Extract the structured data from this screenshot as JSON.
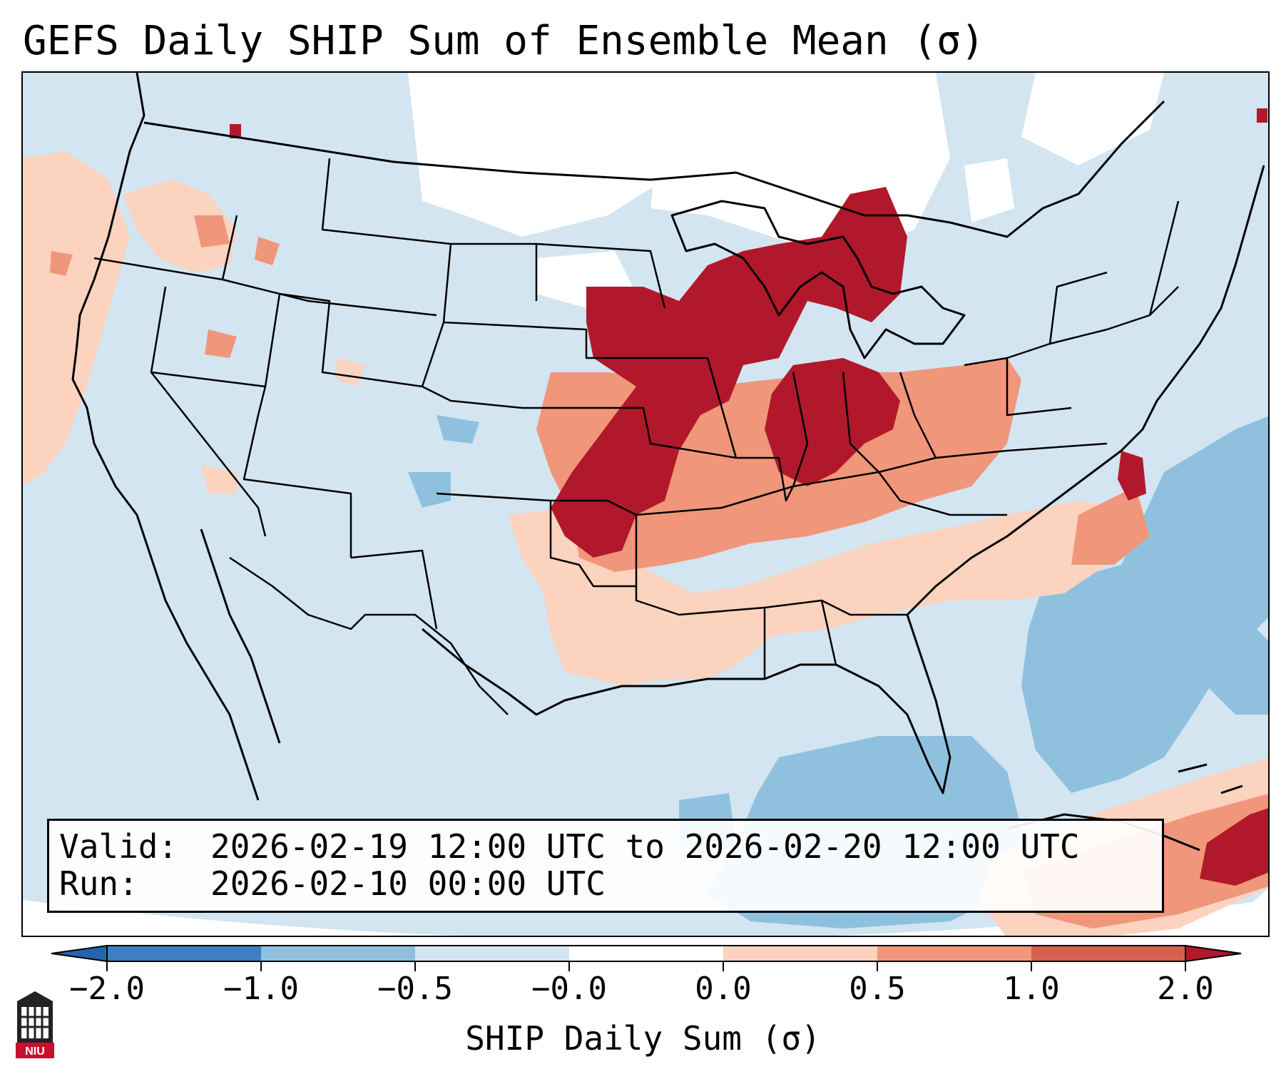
{
  "title": "GEFS Daily SHIP Sum of Ensemble Mean (σ)",
  "info": {
    "valid_label": "Valid:",
    "valid_value": "2026-02-19 12:00 UTC to 2026-02-20 12:00 UTC",
    "run_label": "Run:",
    "run_value": "2026-02-10 00:00 UTC"
  },
  "colorbar": {
    "label": "SHIP Daily Sum (σ)",
    "ticks": [
      "−2.0",
      "−1.0",
      "−0.5",
      "−0.0",
      "0.0",
      "0.5",
      "1.0",
      "2.0"
    ],
    "colors": [
      "#3a7fbf",
      "#8fc1de",
      "#d2e5f1",
      "#ffffff",
      "#fbd3bf",
      "#f0967a",
      "#d6604d",
      "#b2182b"
    ]
  },
  "logo": {
    "text": "NIU",
    "icon": "niu-logo-icon"
  }
}
